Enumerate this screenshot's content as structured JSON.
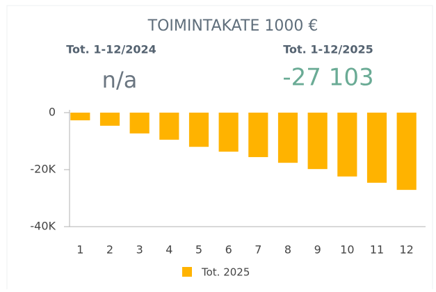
{
  "title": "TOIMINTAKATE 1000 €",
  "kpis": [
    {
      "label": "Tot. 1-12/2024",
      "value": "n/a"
    },
    {
      "label": "Tot. 1-12/2025",
      "value": "-27 103"
    }
  ],
  "chart_data": {
    "type": "bar",
    "categories": [
      "1",
      "2",
      "3",
      "4",
      "5",
      "6",
      "7",
      "8",
      "9",
      "10",
      "11",
      "12"
    ],
    "series": [
      {
        "name": "Tot. 2025",
        "color": "#ffb300",
        "values": [
          -2700,
          -4600,
          -7300,
          -9500,
          -12000,
          -13700,
          -15600,
          -17600,
          -19800,
          -22400,
          -24600,
          -27103
        ]
      }
    ],
    "ylim": [
      -40000,
      0
    ],
    "yticks": [
      0,
      {
        "value": -20000,
        "label": "-20K"
      },
      {
        "value": -40000,
        "label": "-40K"
      }
    ],
    "legend": "bottom"
  }
}
